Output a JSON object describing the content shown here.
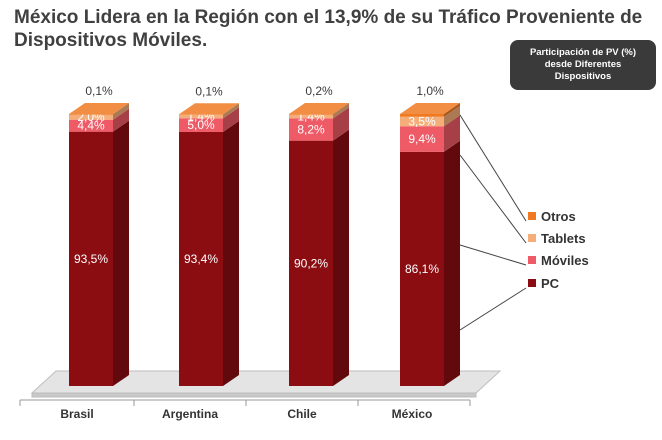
{
  "title": "México Lidera en la Región con el 13,9% de su Tráfico Proveniente de Dispositivos Móviles.",
  "callout": "Participación de PV (%) desde Diferentes Dispositivos",
  "colors": {
    "PC": "#8b0d12",
    "Móviles": "#ee5a66",
    "Tablets": "#f5ad7a",
    "Otros": "#ef7a22",
    "floor": "#dcdcdc"
  },
  "chart_data": {
    "type": "bar",
    "stacked": true,
    "title": "México Lidera en la Región con el 13,9% de su Tráfico Proveniente de Dispositivos Móviles.",
    "categories": [
      "Brasil",
      "Argentina",
      "Chile",
      "México"
    ],
    "series": [
      {
        "name": "PC",
        "values": [
          93.5,
          93.4,
          90.2,
          86.1
        ],
        "labels": [
          "93,5%",
          "93,4%",
          "90,2%",
          "86,1%"
        ]
      },
      {
        "name": "Móviles",
        "values": [
          4.4,
          5.0,
          8.2,
          9.4
        ],
        "labels": [
          "4,4%",
          "5,0%",
          "8,2%",
          "9,4%"
        ]
      },
      {
        "name": "Tablets",
        "values": [
          2.0,
          1.4,
          1.4,
          3.5
        ],
        "labels": [
          "2,0%",
          "1,4%",
          "1,4%",
          "3,5%"
        ]
      },
      {
        "name": "Otros",
        "values": [
          0.1,
          0.1,
          0.2,
          1.0
        ],
        "labels": [
          "0,1%",
          "0,1%",
          "0,2%",
          "1,0%"
        ]
      }
    ],
    "legend": {
      "position": "right",
      "items": [
        "Otros",
        "Tablets",
        "Móviles",
        "PC"
      ]
    },
    "xlabel": "",
    "ylabel": "",
    "ylim": [
      0,
      100
    ],
    "style": "3d"
  }
}
